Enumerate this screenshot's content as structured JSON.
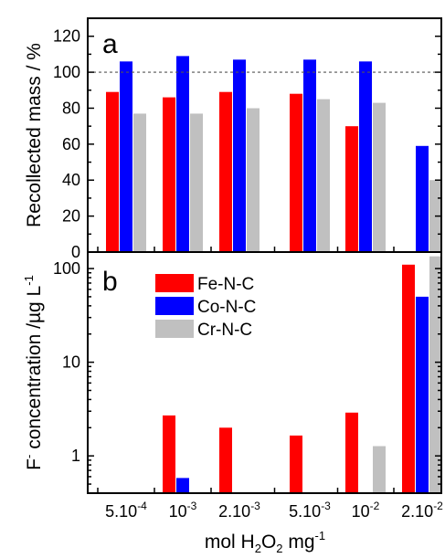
{
  "chart_data": {
    "type": "bar",
    "x_axis": {
      "categories": [
        "5.10-4",
        "10-3",
        "2.10-3",
        "5.10-3",
        "10-2",
        "2.10-2"
      ],
      "tick_labels": [
        {
          "base": "5.10",
          "exp": "-4"
        },
        {
          "base": "10",
          "exp": "-3"
        },
        {
          "base": "2.10",
          "exp": "-3"
        },
        {
          "base": "5.10",
          "exp": "-3"
        },
        {
          "base": "10",
          "exp": "-2"
        },
        {
          "base": "2.10",
          "exp": "-2"
        }
      ],
      "label": "mol H2O2 mg-1"
    },
    "colors": {
      "Fe-N-C": "#ff0000",
      "Co-N-C": "#0000ff",
      "Cr-N-C": "#c0c0c0"
    },
    "panels": [
      {
        "letter": "a",
        "ylabel": "Recollected mass / %",
        "ylim": [
          0,
          130
        ],
        "yticks": [
          0,
          20,
          40,
          60,
          80,
          100,
          120
        ],
        "reference_line": 100,
        "series": [
          {
            "name": "Fe-N-C",
            "values": [
              89,
              86,
              89,
              88,
              70,
              null
            ]
          },
          {
            "name": "Co-N-C",
            "values": [
              106,
              109,
              107,
              107,
              106,
              59
            ]
          },
          {
            "name": "Cr-N-C",
            "values": [
              77,
              77,
              80,
              85,
              83,
              40
            ]
          }
        ]
      },
      {
        "letter": "b",
        "ylabel": "F- concentration /µg L-1",
        "scale": "log",
        "ylim": [
          0.4,
          150
        ],
        "yticks": [
          1,
          10,
          100
        ],
        "series": [
          {
            "name": "Fe-N-C",
            "values": [
              null,
              2.7,
              2.0,
              1.65,
              2.9,
              110
            ]
          },
          {
            "name": "Co-N-C",
            "values": [
              null,
              0.58,
              null,
              null,
              null,
              50
            ]
          },
          {
            "name": "Cr-N-C",
            "values": [
              null,
              null,
              null,
              null,
              1.27,
              135
            ]
          }
        ]
      }
    ],
    "legend": {
      "position": "top-left",
      "entries": [
        "Fe-N-C",
        "Co-N-C",
        "Cr-N-C"
      ]
    }
  }
}
